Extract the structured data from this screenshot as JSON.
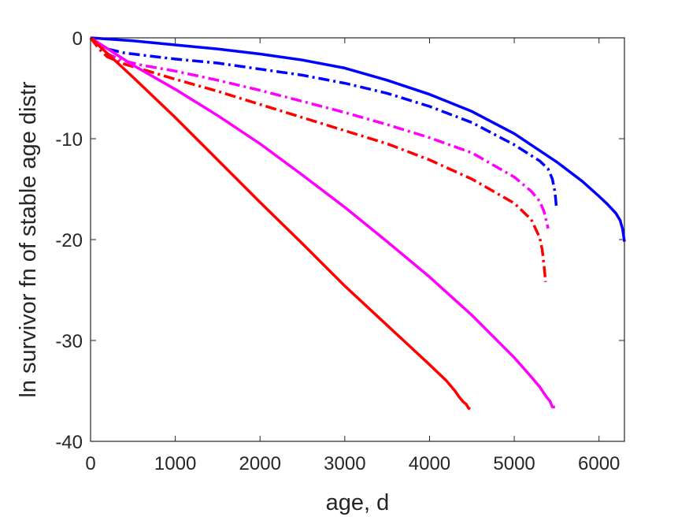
{
  "chart_data": {
    "type": "line",
    "title": "",
    "xlabel": "age, d",
    "ylabel": "ln survivor fn of stable age distr",
    "xlim": [
      0,
      6300
    ],
    "ylim": [
      -40,
      0
    ],
    "xticks": [
      0,
      1000,
      2000,
      3000,
      4000,
      5000,
      6000
    ],
    "yticks": [
      0,
      -10,
      -20,
      -30,
      -40
    ],
    "grid": false,
    "legend": "none",
    "series": [
      {
        "color": "#0000ff",
        "style": "solid",
        "x": [
          0,
          500,
          1000,
          1500,
          2000,
          2500,
          3000,
          3500,
          4000,
          4500,
          5000,
          5500,
          5800,
          6000,
          6100,
          6200,
          6250,
          6280,
          6300
        ],
        "y": [
          0,
          -0.3,
          -0.7,
          -1.1,
          -1.6,
          -2.2,
          -3.0,
          -4.2,
          -5.6,
          -7.3,
          -9.5,
          -12.3,
          -14.2,
          -15.7,
          -16.5,
          -17.4,
          -18.1,
          -19.0,
          -20.2
        ]
      },
      {
        "color": "#0000ff",
        "style": "dashdot",
        "x": [
          0,
          100,
          200,
          400,
          600,
          1000,
          1500,
          2000,
          2500,
          3000,
          3500,
          4000,
          4500,
          5000,
          5300,
          5400,
          5450,
          5480,
          5500
        ],
        "y": [
          0,
          -0.8,
          -1.1,
          -1.5,
          -1.7,
          -2.1,
          -2.5,
          -3.1,
          -3.7,
          -4.5,
          -5.5,
          -6.8,
          -8.4,
          -10.6,
          -12.2,
          -13.0,
          -14.0,
          -15.3,
          -17.0
        ]
      },
      {
        "color": "#ff00ff",
        "style": "dashdot",
        "x": [
          0,
          100,
          200,
          400,
          600,
          1000,
          1500,
          2000,
          2500,
          3000,
          3500,
          4000,
          4500,
          5000,
          5200,
          5300,
          5350,
          5400
        ],
        "y": [
          0,
          -1.0,
          -1.6,
          -2.3,
          -2.7,
          -3.3,
          -4.2,
          -5.2,
          -6.3,
          -7.4,
          -8.6,
          -9.9,
          -11.4,
          -13.8,
          -15.2,
          -16.2,
          -17.2,
          -18.9
        ]
      },
      {
        "color": "#ff0000",
        "style": "dashdot",
        "x": [
          0,
          100,
          200,
          400,
          600,
          1000,
          1500,
          2000,
          2500,
          3000,
          3500,
          4000,
          4500,
          5000,
          5200,
          5300,
          5330,
          5350,
          5370
        ],
        "y": [
          0,
          -1.1,
          -1.9,
          -2.6,
          -3.1,
          -4.1,
          -5.3,
          -6.6,
          -7.9,
          -9.2,
          -10.5,
          -12.1,
          -14.0,
          -16.4,
          -18.0,
          -19.8,
          -21.0,
          -22.5,
          -24.2
        ]
      },
      {
        "color": "#ff00ff",
        "style": "solid",
        "x": [
          0,
          500,
          1000,
          1500,
          2000,
          2500,
          3000,
          3500,
          4000,
          4500,
          5000,
          5200,
          5300,
          5380,
          5420,
          5450,
          5480
        ],
        "y": [
          0,
          -2.7,
          -5.1,
          -7.7,
          -10.5,
          -13.6,
          -16.8,
          -20.2,
          -23.7,
          -27.5,
          -31.7,
          -33.6,
          -34.6,
          -35.6,
          -36.0,
          -36.6,
          -36.6
        ]
      },
      {
        "color": "#ff0000",
        "style": "solid",
        "x": [
          0,
          500,
          1000,
          1500,
          2000,
          2500,
          3000,
          3500,
          4000,
          4200,
          4300,
          4350,
          4400,
          4430,
          4460,
          4480
        ],
        "y": [
          0,
          -3.9,
          -7.9,
          -12.1,
          -16.3,
          -20.4,
          -24.6,
          -28.5,
          -32.4,
          -34.0,
          -35.0,
          -35.6,
          -36.1,
          -36.3,
          -36.7,
          -36.8
        ]
      }
    ]
  }
}
